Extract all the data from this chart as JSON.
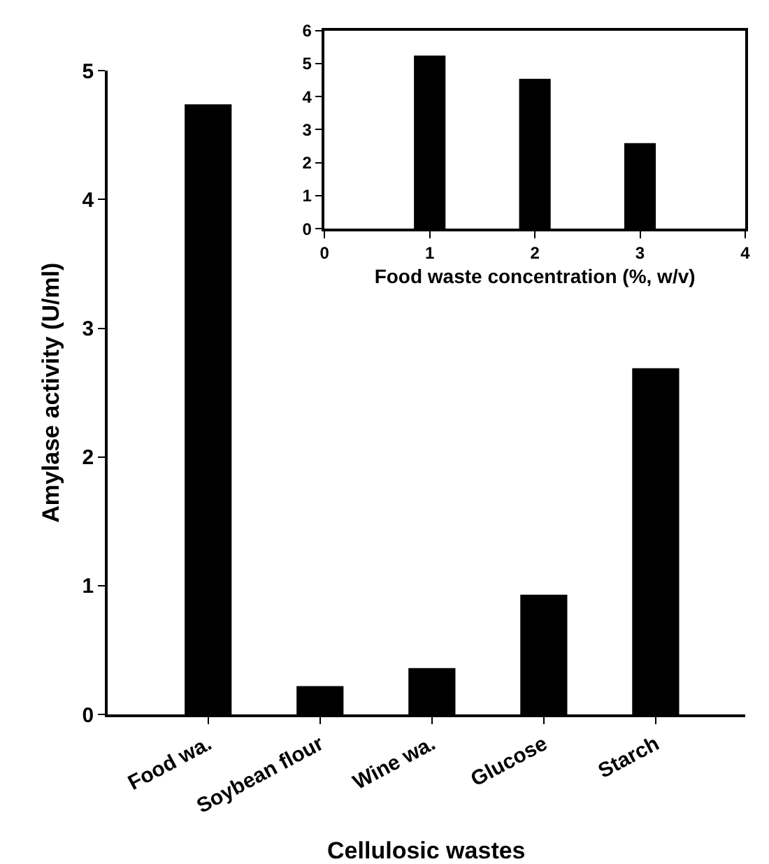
{
  "chart_data": [
    {
      "type": "bar",
      "categories": [
        "Food wa.",
        "Soybean flour",
        "Wine wa.",
        "Glucose",
        "Starch"
      ],
      "values": [
        4.74,
        0.22,
        0.36,
        0.93,
        2.69
      ],
      "color": "#000000",
      "xlabel": "Cellulosic wastes",
      "ylabel": "Amylase activity (U/ml)",
      "ylim": [
        0,
        5
      ],
      "yticks": [
        0,
        1,
        2,
        3,
        4,
        5
      ]
    },
    {
      "type": "bar",
      "x": [
        1,
        2,
        3
      ],
      "values": [
        5.24,
        4.54,
        2.59
      ],
      "color": "#000000",
      "xlabel": "Food waste concentration (%, w/v)",
      "xlim": [
        0,
        4
      ],
      "xticks": [
        0,
        1,
        2,
        3,
        4
      ],
      "ylim": [
        0,
        6
      ],
      "yticks": [
        0,
        1,
        2,
        3,
        4,
        5,
        6
      ]
    }
  ]
}
